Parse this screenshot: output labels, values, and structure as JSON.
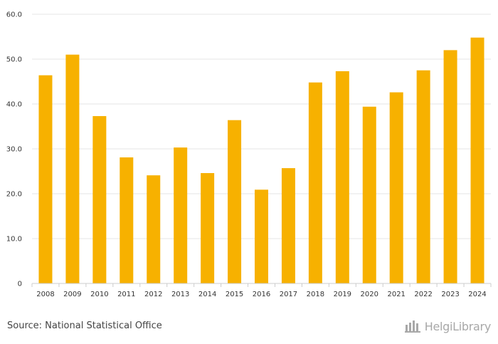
{
  "chart_data": {
    "type": "bar",
    "title": "",
    "xlabel": "",
    "ylabel": "",
    "categories": [
      "2008",
      "2009",
      "2010",
      "2011",
      "2012",
      "2013",
      "2014",
      "2015",
      "2016",
      "2017",
      "2018",
      "2019",
      "2020",
      "2021",
      "2022",
      "2023",
      "2024"
    ],
    "values": [
      46.4,
      51.0,
      37.3,
      28.1,
      24.1,
      30.3,
      24.6,
      36.4,
      20.9,
      25.7,
      44.8,
      47.3,
      39.4,
      42.6,
      47.5,
      52.0,
      54.8
    ],
    "ylim": [
      0,
      60
    ],
    "yticks": [
      0,
      10,
      20,
      30,
      40,
      50,
      60
    ],
    "ytick_labels": [
      "0",
      "10.0",
      "20.0",
      "30.0",
      "40.0",
      "50.0",
      "60.0"
    ],
    "grid": true,
    "bar_color": "#f7b100"
  },
  "footer": {
    "source": "Source: National Statistical Office",
    "logo_text": "HelgiLibrary"
  },
  "colors": {
    "grid": "#e6e6e6",
    "axis": "#cccccc",
    "logo": "#a8a8a8"
  }
}
